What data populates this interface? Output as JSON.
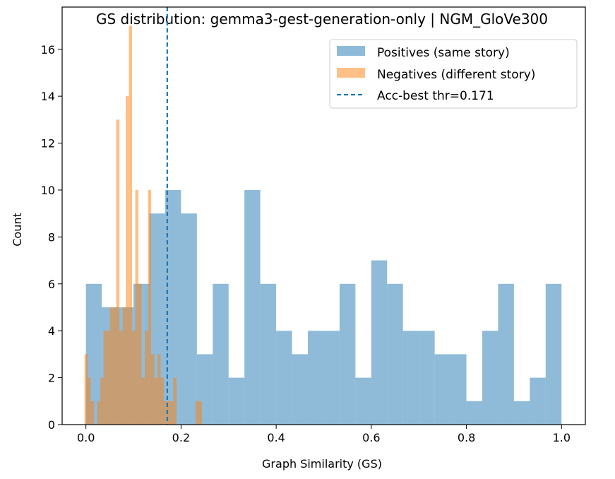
{
  "chart_data": {
    "type": "bar",
    "title": "GS distribution: gemma3-gest-generation-only | NGM_GloVe300",
    "xlabel": "Graph Similarity (GS)",
    "ylabel": "Count",
    "xlim": [
      -0.05,
      1.05
    ],
    "ylim": [
      0,
      17.8
    ],
    "xticks": [
      0.0,
      0.2,
      0.4,
      0.6,
      0.8,
      1.0
    ],
    "xtick_labels": [
      "0.0",
      "0.2",
      "0.4",
      "0.6",
      "0.8",
      "1.0"
    ],
    "yticks": [
      0,
      2,
      4,
      6,
      8,
      10,
      12,
      14,
      16
    ],
    "ytick_labels": [
      "0",
      "2",
      "4",
      "6",
      "8",
      "10",
      "12",
      "14",
      "16"
    ],
    "legend_position": "top-right",
    "series": [
      {
        "name": "Positives (same story)",
        "kind": "histogram",
        "color": "#1f77b4",
        "opacity": 0.5,
        "bin_start": 0.0,
        "bin_width": 0.03333,
        "counts": [
          6,
          5,
          5,
          6,
          9,
          10,
          9,
          3,
          6,
          2,
          10,
          6,
          4,
          3,
          4,
          4,
          6,
          2,
          7,
          6,
          4,
          4,
          3,
          3,
          1,
          4,
          6,
          1,
          2,
          6
        ]
      },
      {
        "name": "Negatives (different story)",
        "kind": "histogram",
        "color": "#ff7f0e",
        "opacity": 0.5,
        "bin_start": -0.003,
        "bin_width": 0.00667,
        "counts": [
          3,
          2,
          1,
          0,
          1,
          2,
          4,
          4,
          5,
          5,
          13,
          4,
          5,
          14,
          17,
          4,
          10,
          6,
          2,
          4,
          10,
          3,
          2,
          3,
          2,
          1,
          1,
          1,
          2,
          0,
          0,
          0,
          0,
          0,
          0,
          1,
          1
        ]
      }
    ],
    "threshold": {
      "name": "Acc-best thr=0.171",
      "x": 0.171,
      "color": "#1f77b4",
      "style": "dashed"
    }
  }
}
